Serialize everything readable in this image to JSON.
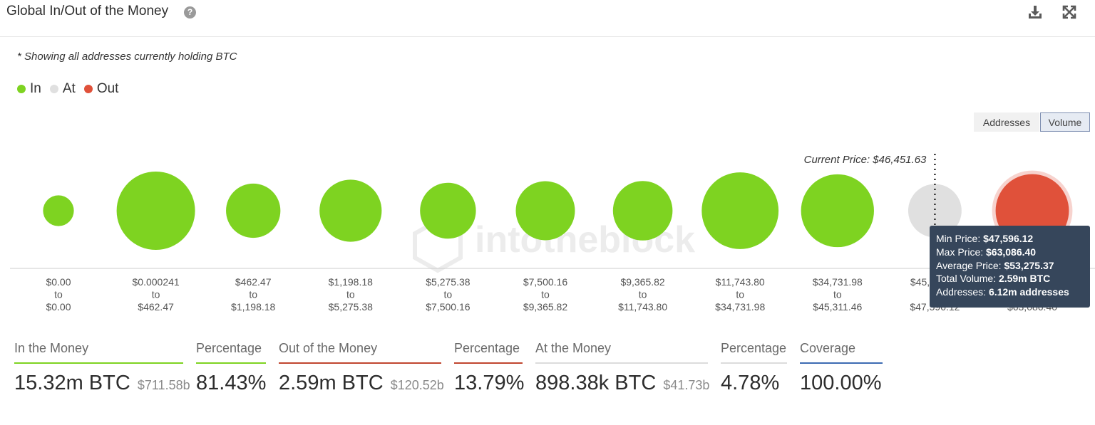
{
  "header": {
    "title": "Global In/Out of the Money",
    "help_glyph": "?"
  },
  "note": "* Showing all addresses currently holding BTC",
  "legend": [
    {
      "label": "In",
      "color": "#7ed321"
    },
    {
      "label": "At",
      "color": "#e0e0e0"
    },
    {
      "label": "Out",
      "color": "#e0513a"
    }
  ],
  "toggles": {
    "addresses_label": "Addresses",
    "volume_label": "Volume",
    "active": "Volume"
  },
  "watermark": "intotheblock",
  "chart_data": {
    "type": "bubble",
    "current_price_label": "Current Price: $46,451.63",
    "current_price": 46451.63,
    "colors": {
      "in": "#7ed321",
      "at": "#e0e0e0",
      "out": "#e0513a"
    },
    "buckets": [
      {
        "from": "$0.00",
        "to": "$0.00",
        "status": "in",
        "size": 0.05
      },
      {
        "from": "$0.000241",
        "to": "$462.47",
        "status": "in",
        "size": 1.0
      },
      {
        "from": "$462.47",
        "to": "$1,198.18",
        "status": "in",
        "size": 0.37
      },
      {
        "from": "$1,198.18",
        "to": "$5,275.38",
        "status": "in",
        "size": 0.54
      },
      {
        "from": "$5,275.38",
        "to": "$7,500.16",
        "status": "in",
        "size": 0.4
      },
      {
        "from": "$7,500.16",
        "to": "$9,365.82",
        "status": "in",
        "size": 0.47
      },
      {
        "from": "$9,365.82",
        "to": "$11,743.80",
        "status": "in",
        "size": 0.48
      },
      {
        "from": "$11,743.80",
        "to": "$34,731.98",
        "status": "in",
        "size": 0.95
      },
      {
        "from": "$34,731.98",
        "to": "$45,311.46",
        "status": "in",
        "size": 0.83
      },
      {
        "from": "$45,311.46",
        "to": "$47,596.12",
        "status": "at",
        "size": 0.35
      },
      {
        "from": "$47,596.12",
        "to": "$63,086.40",
        "status": "out",
        "size": 0.84
      }
    ]
  },
  "tooltip": {
    "min_label": "Min Price: ",
    "min_value": "$47,596.12",
    "max_label": "Max Price: ",
    "max_value": "$63,086.40",
    "avg_label": "Average Price: ",
    "avg_value": "$53,275.37",
    "vol_label": "Total Volume: ",
    "vol_value": "2.59m BTC",
    "addr_label": "Addresses: ",
    "addr_value": "6.12m addresses"
  },
  "stats": {
    "in": {
      "label": "In the Money",
      "value": "15.32m BTC",
      "sub": "$711.58b",
      "color": "#7ed321"
    },
    "in_pct": {
      "label": "Percentage",
      "value": "81.43%",
      "color": "#7ed321"
    },
    "out": {
      "label": "Out of the Money",
      "value": "2.59m BTC",
      "sub": "$120.52b",
      "color": "#c0462f"
    },
    "out_pct": {
      "label": "Percentage",
      "value": "13.79%",
      "color": "#c0462f"
    },
    "at": {
      "label": "At the Money",
      "value": "898.38k BTC",
      "sub": "$41.73b",
      "color": "#dcdcdc"
    },
    "at_pct": {
      "label": "Percentage",
      "value": "4.78%",
      "color": "#dcdcdc"
    },
    "coverage": {
      "label": "Coverage",
      "value": "100.00%",
      "color": "#3d6bb3"
    }
  }
}
